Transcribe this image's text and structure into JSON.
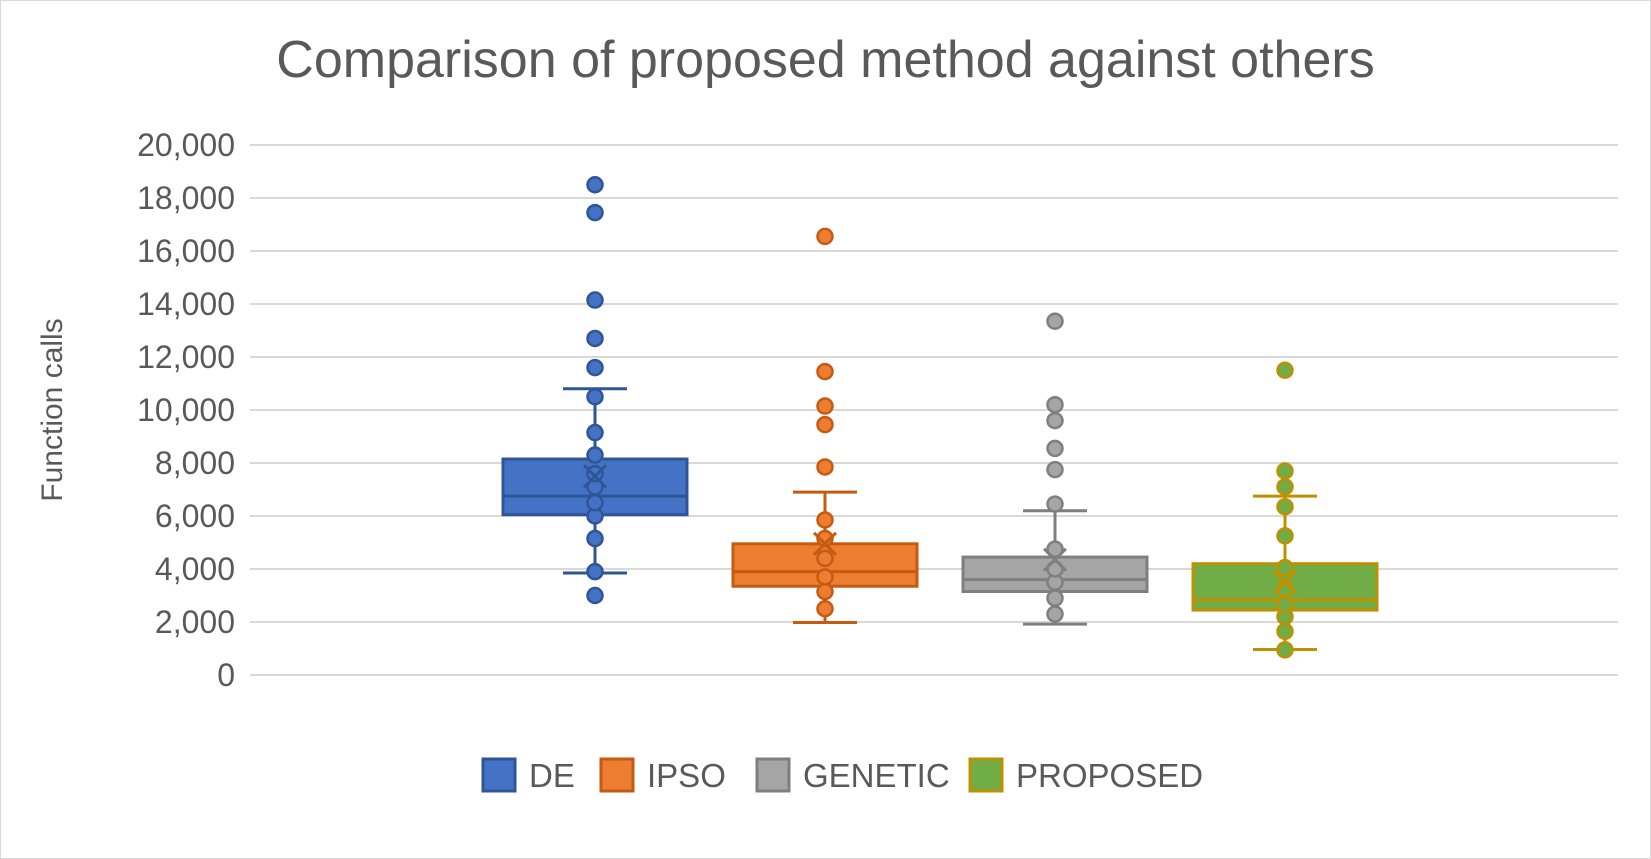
{
  "chart_data": {
    "type": "boxplot",
    "title": "Comparison of proposed method against others",
    "ylabel": "Function calls",
    "xlabel": "",
    "ylim": [
      0,
      20000
    ],
    "yticks": [
      0,
      2000,
      4000,
      6000,
      8000,
      10000,
      12000,
      14000,
      16000,
      18000,
      20000
    ],
    "ytick_labels": [
      "0",
      "2,000",
      "4,000",
      "6,000",
      "8,000",
      "10,000",
      "12,000",
      "14,000",
      "16,000",
      "18,000",
      "20,000"
    ],
    "grid": true,
    "legend_position": "bottom",
    "series": [
      {
        "name": "DE",
        "color": "#4472C4",
        "stroke": "#2F5597",
        "whisker_low": 3850,
        "q1": 6050,
        "median": 6750,
        "q3": 8150,
        "whisker_high": 10800,
        "mean": 7500,
        "points": [
          3000,
          3900,
          5150,
          6000,
          6500,
          7100,
          7600,
          8300,
          9150,
          10500,
          11600,
          12700,
          14150,
          17450,
          18500
        ]
      },
      {
        "name": "IPSO",
        "color": "#ED7D31",
        "stroke": "#C55A11",
        "whisker_low": 1980,
        "q1": 3350,
        "median": 3900,
        "q3": 4950,
        "whisker_high": 6900,
        "mean": 4950,
        "points": [
          2500,
          3150,
          3700,
          4400,
          5150,
          5850,
          7850,
          9450,
          10150,
          11450,
          16550
        ]
      },
      {
        "name": "GENETIC",
        "color": "#A5A5A5",
        "stroke": "#7F7F7F",
        "whisker_low": 1920,
        "q1": 3150,
        "median": 3600,
        "q3": 4450,
        "whisker_high": 6200,
        "mean": 4350,
        "points": [
          2300,
          2900,
          3500,
          4000,
          4750,
          6450,
          7750,
          8550,
          9600,
          10200,
          13350
        ]
      },
      {
        "name": "PROPOSED",
        "color": "#70AD47",
        "stroke": "#BF9000",
        "whisker_low": 960,
        "q1": 2450,
        "median": 2850,
        "q3": 4200,
        "whisker_high": 6750,
        "mean": 3500,
        "points": [
          950,
          1650,
          2200,
          2650,
          3250,
          4050,
          5250,
          6350,
          7100,
          7700,
          11500
        ]
      }
    ]
  }
}
